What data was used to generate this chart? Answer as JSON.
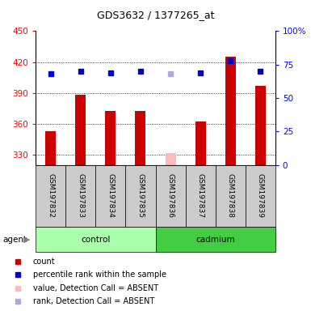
{
  "title": "GDS3632 / 1377265_at",
  "samples": [
    "GSM197832",
    "GSM197833",
    "GSM197834",
    "GSM197835",
    "GSM197836",
    "GSM197837",
    "GSM197838",
    "GSM197839"
  ],
  "bar_values": [
    353,
    388,
    372,
    372,
    331.5,
    362,
    425,
    397
  ],
  "bar_absent": [
    false,
    false,
    false,
    false,
    true,
    false,
    false,
    false
  ],
  "dot_values": [
    68,
    70,
    69,
    70,
    68,
    69,
    78,
    70
  ],
  "dot_absent": [
    false,
    false,
    false,
    false,
    true,
    false,
    false,
    false
  ],
  "ylim_left": [
    320,
    450
  ],
  "ylim_right": [
    0,
    100
  ],
  "yticks_left": [
    330,
    360,
    390,
    420,
    450
  ],
  "yticks_right": [
    0,
    25,
    50,
    75,
    100
  ],
  "bar_color": "#cc0000",
  "bar_absent_color": "#ffbbbb",
  "dot_color": "#0000cc",
  "dot_absent_color": "#aaaadd",
  "control_bg": "#cccccc",
  "control_group_color": "#aaffaa",
  "cadmium_group_color": "#44cc44",
  "legend_items": [
    {
      "label": "count",
      "color": "#cc0000"
    },
    {
      "label": "percentile rank within the sample",
      "color": "#0000cc"
    },
    {
      "label": "value, Detection Call = ABSENT",
      "color": "#ffbbbb"
    },
    {
      "label": "rank, Detection Call = ABSENT",
      "color": "#aaaadd"
    }
  ]
}
